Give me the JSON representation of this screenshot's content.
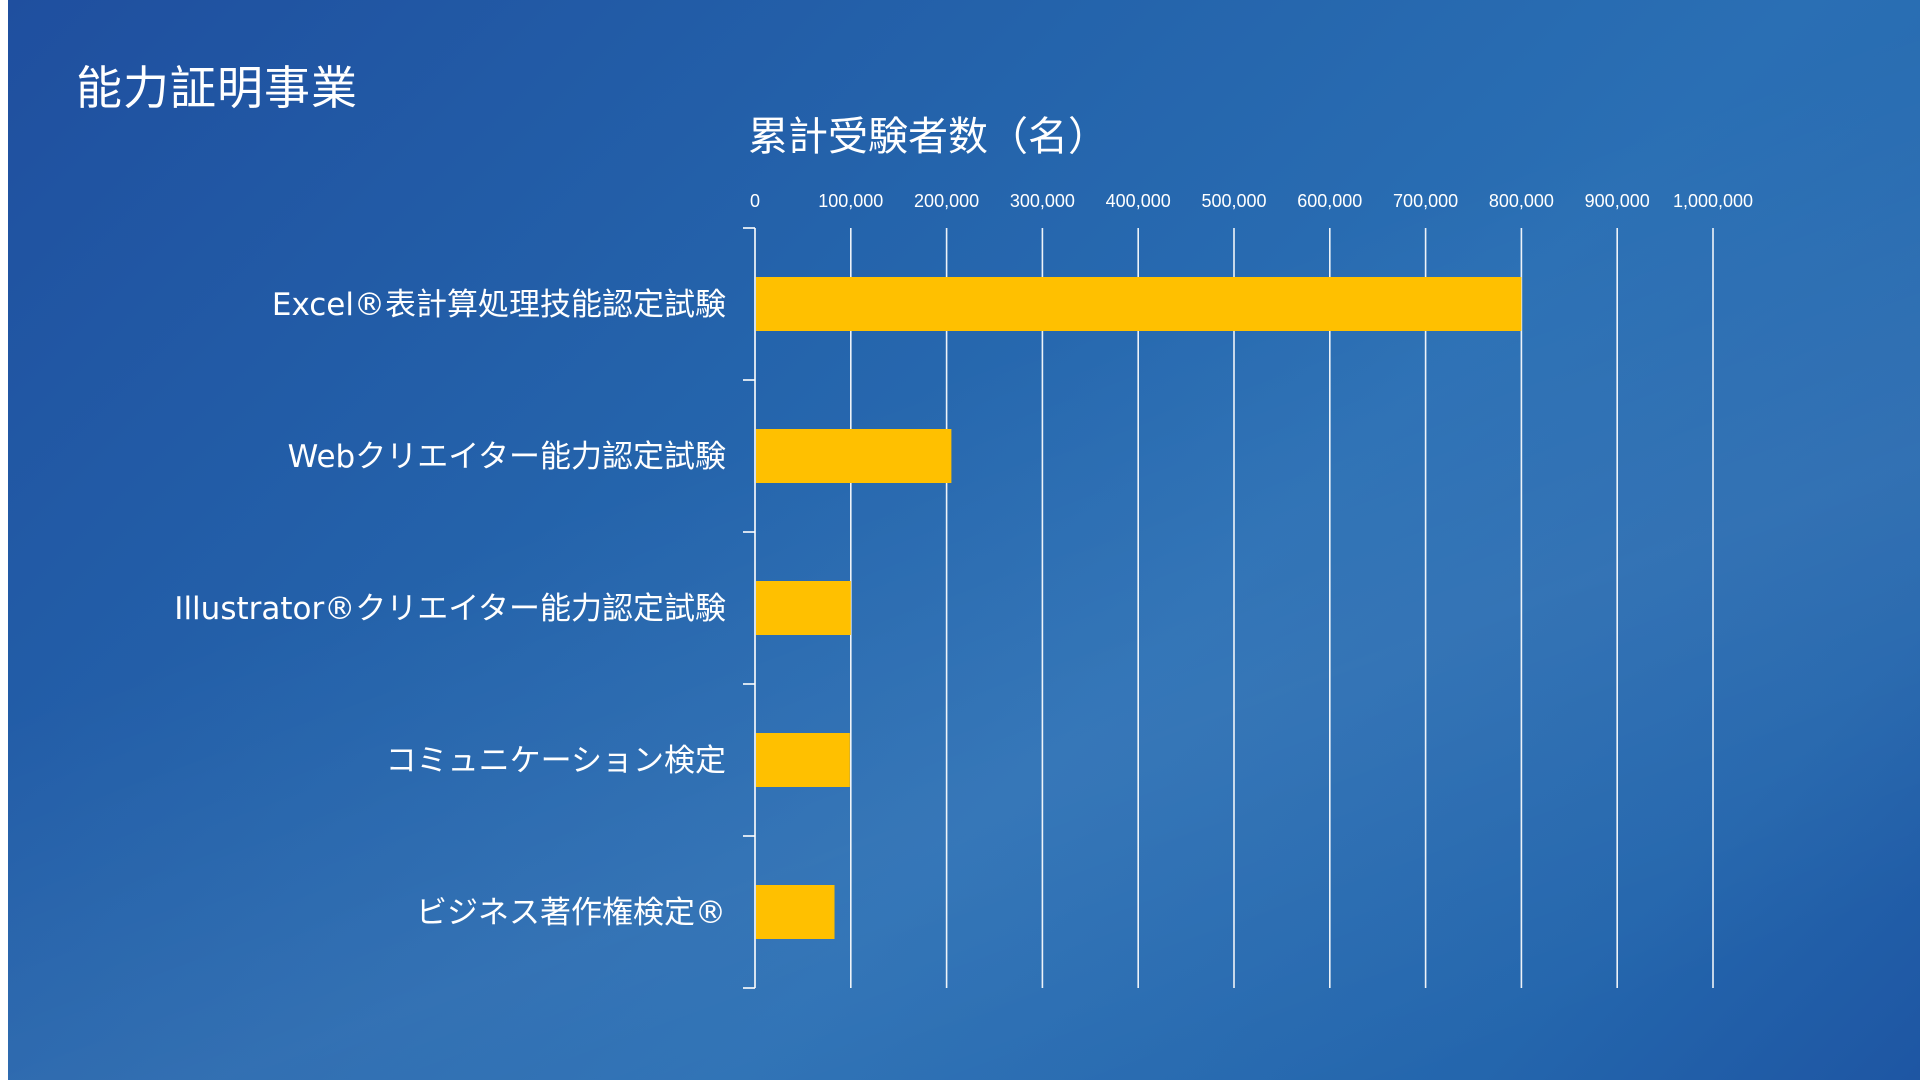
{
  "slide": {
    "title": "能力証明事業"
  },
  "colors": {
    "background": "#2463ab",
    "bar": "#ffc000",
    "text": "#ffffff"
  },
  "chart_data": {
    "type": "bar",
    "orientation": "horizontal",
    "title": "累計受験者数（名）",
    "categories": [
      "Excel®表計算処理技能認定試験",
      "Webクリエイター能力認定試験",
      "Illustrator®クリエイター能力認定試験",
      "コミュニケーション検定",
      "ビジネス著作権検定®"
    ],
    "values": [
      800000,
      205000,
      100000,
      99000,
      83000
    ],
    "xlim": [
      0,
      1000000
    ],
    "x_ticks": [
      "0",
      "100,000",
      "200,000",
      "300,000",
      "400,000",
      "500,000",
      "600,000",
      "700,000",
      "800,000",
      "900,000",
      "1,000,000"
    ],
    "x_axis_position": "top",
    "grid": true,
    "legend": "none"
  }
}
